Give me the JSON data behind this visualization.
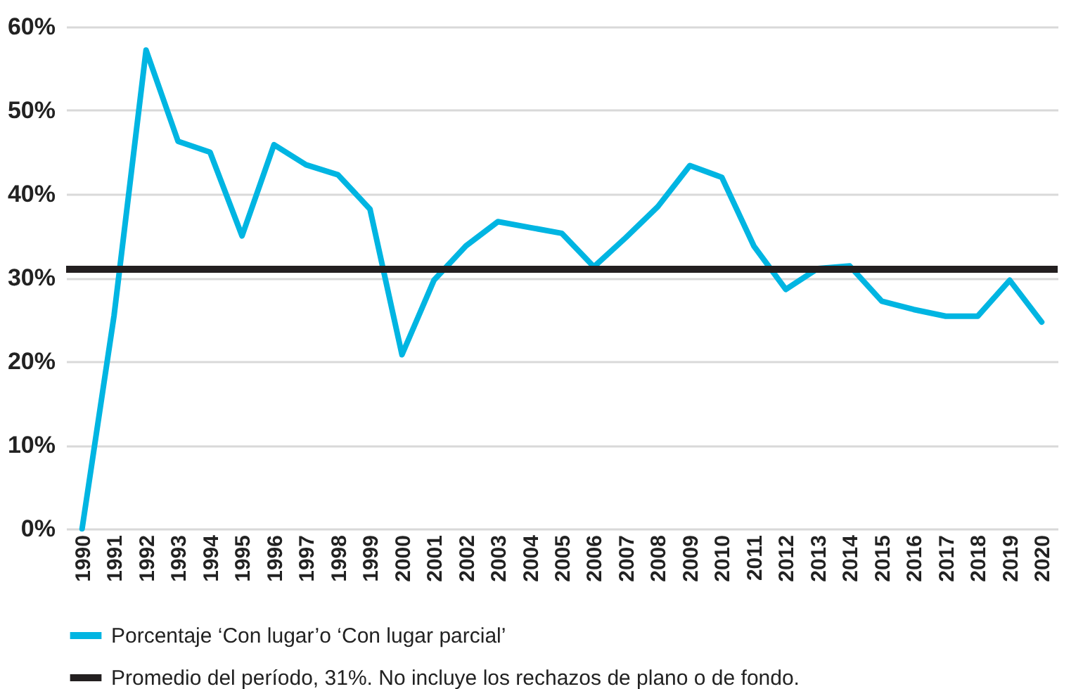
{
  "chart_data": {
    "type": "line",
    "categories": [
      "1990",
      "1991",
      "1992",
      "1993",
      "1994",
      "1995",
      "1996",
      "1997",
      "1998",
      "1999",
      "2000",
      "2001",
      "2002",
      "2003",
      "2004",
      "2005",
      "2006",
      "2007",
      "2008",
      "2009",
      "2010",
      "2011",
      "2012",
      "2013",
      "2014",
      "2015",
      "2016",
      "2017",
      "2018",
      "2019",
      "2020"
    ],
    "series": [
      {
        "name": "Porcentaje ‘Con lugar’o ‘Con lugar parcial’",
        "color": "#00b5e2",
        "values": [
          0,
          25.5,
          57.2,
          46.3,
          45,
          35,
          45.9,
          43.5,
          42.3,
          38.2,
          20.8,
          29.7,
          33.8,
          36.7,
          36,
          35.3,
          31.3,
          34.8,
          38.5,
          43.4,
          42,
          33.8,
          28.6,
          31.1,
          31.4,
          27.2,
          26.2,
          25.4,
          25.4,
          29.7,
          24.7
        ]
      }
    ],
    "ref_lines": [
      {
        "axis": "y",
        "value": 31,
        "label": "Promedio del período, 31%. No incluye los rechazos de plano o de fondo.",
        "color": "#231f20"
      }
    ],
    "ylim": [
      0,
      60
    ],
    "yticks": [
      {
        "value": 0,
        "label": "0%"
      },
      {
        "value": 10,
        "label": "10%"
      },
      {
        "value": 20,
        "label": "20%"
      },
      {
        "value": 30,
        "label": "30%"
      },
      {
        "value": 40,
        "label": "40%"
      },
      {
        "value": 50,
        "label": "50%"
      },
      {
        "value": 60,
        "label": "60%"
      }
    ],
    "grid": "y",
    "legend": "bottom left",
    "marker": "none",
    "line_style": "solid"
  }
}
